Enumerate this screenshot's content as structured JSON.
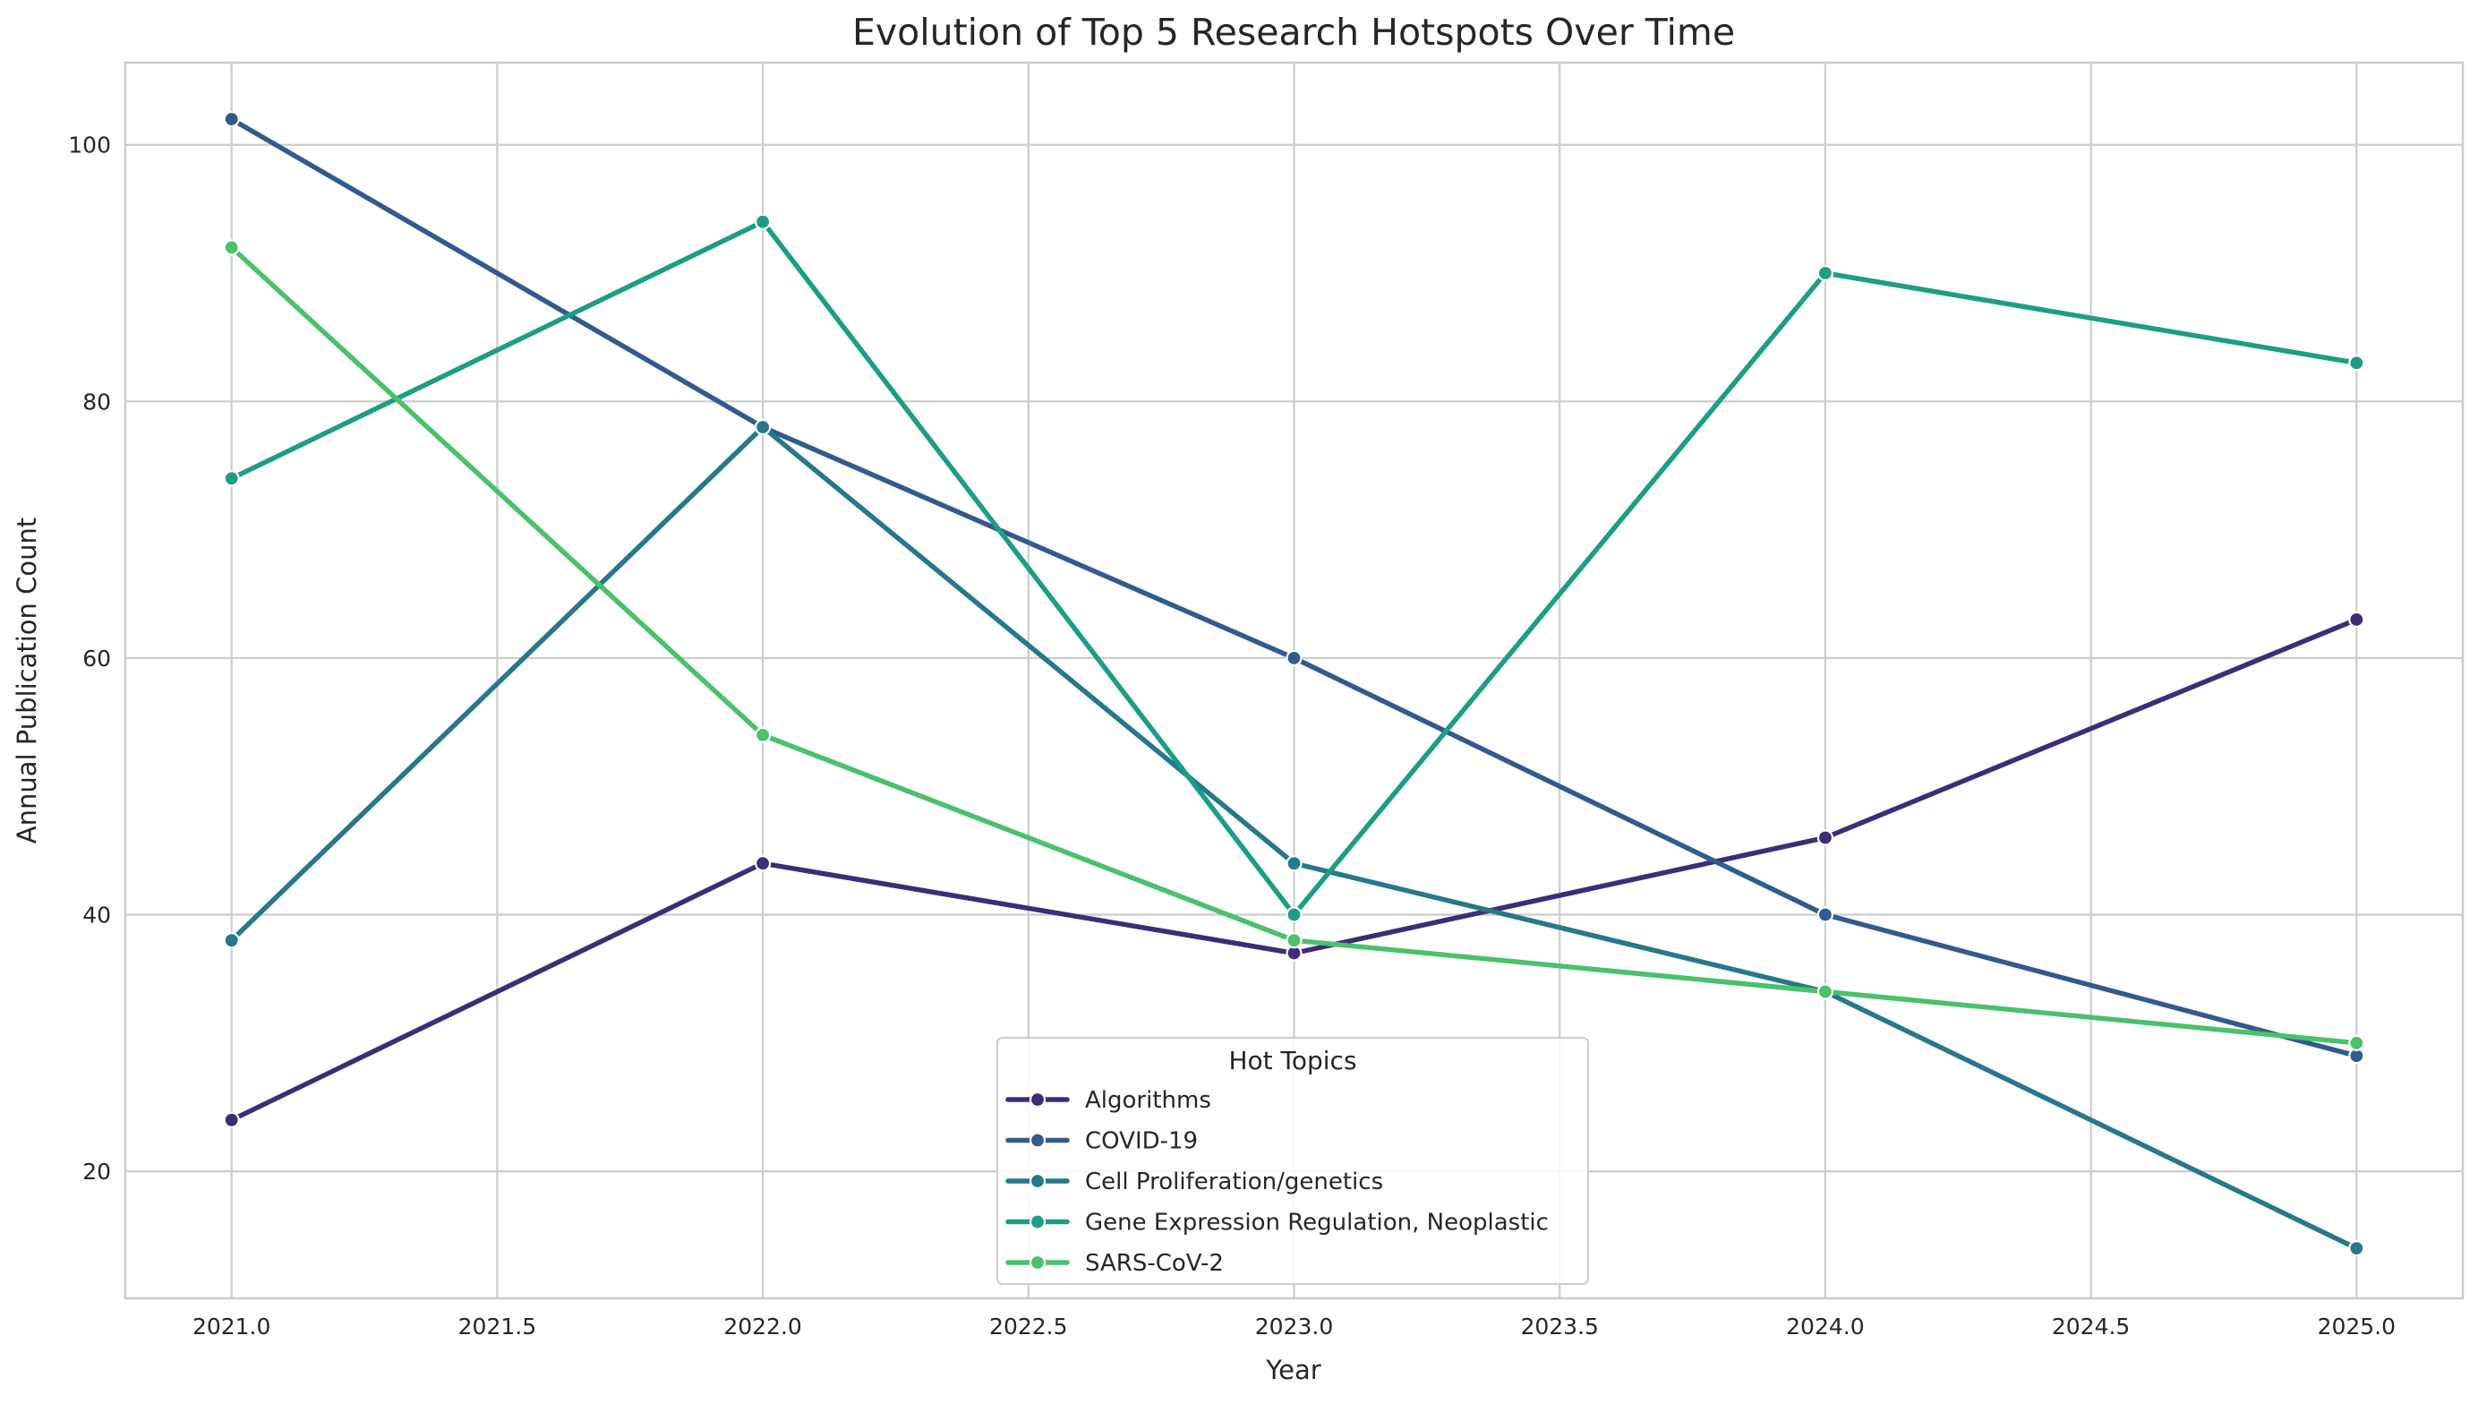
{
  "chart_data": {
    "type": "line",
    "title": "Evolution of Top 5 Research Hotspots Over Time",
    "xlabel": "Year",
    "ylabel": "Annual Publication Count",
    "x": [
      2021,
      2022,
      2023,
      2024,
      2025
    ],
    "xlim": [
      2020.8,
      2025.2
    ],
    "ylim": [
      10.1,
      106.4
    ],
    "xticks": [
      "2021.0",
      "2021.5",
      "2022.0",
      "2022.5",
      "2023.0",
      "2023.5",
      "2024.0",
      "2024.5",
      "2025.0"
    ],
    "xtick_values": [
      2021.0,
      2021.5,
      2022.0,
      2022.5,
      2023.0,
      2023.5,
      2024.0,
      2024.5,
      2025.0
    ],
    "yticks": [
      "20",
      "40",
      "60",
      "80",
      "100"
    ],
    "ytick_values": [
      20,
      40,
      60,
      80,
      100
    ],
    "grid": true,
    "legend": {
      "title": "Hot Topics",
      "placement": "lower-center"
    },
    "series": [
      {
        "name": "Algorithms",
        "color": "#3f2c78",
        "values": [
          24,
          44,
          37,
          46,
          63
        ]
      },
      {
        "name": "COVID-19",
        "color": "#335a8e",
        "values": [
          102,
          78,
          60,
          40,
          29
        ]
      },
      {
        "name": "Cell Proliferation/genetics",
        "color": "#26788a",
        "values": [
          38,
          78,
          44,
          34,
          14
        ]
      },
      {
        "name": "Gene Expression Regulation, Neoplastic",
        "color": "#1d9e84",
        "values": [
          74,
          94,
          40,
          90,
          83
        ]
      },
      {
        "name": "SARS-CoV-2",
        "color": "#4ac16b",
        "values": [
          92,
          54,
          38,
          34,
          30
        ]
      }
    ]
  }
}
